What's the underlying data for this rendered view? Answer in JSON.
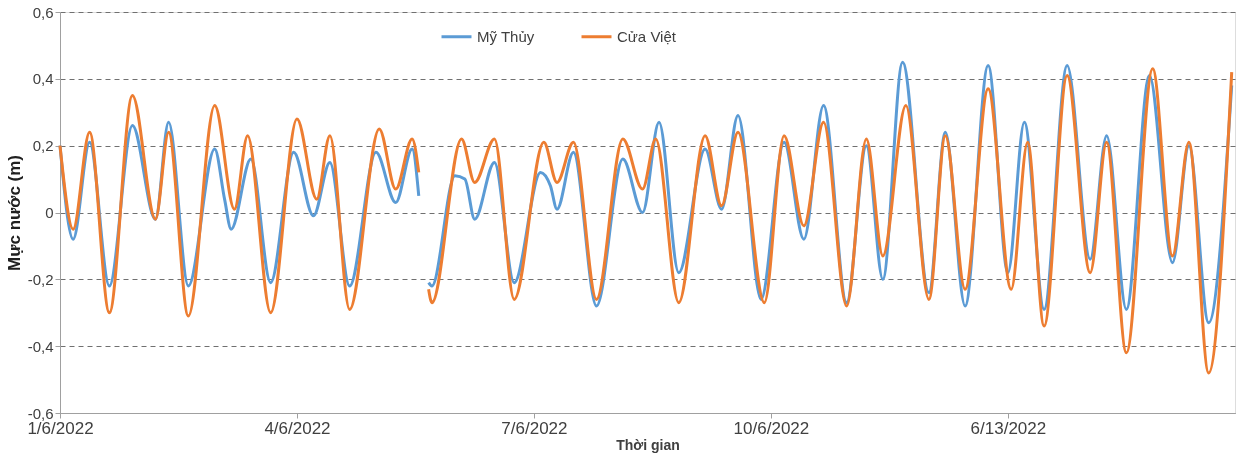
{
  "chart_data": {
    "type": "line",
    "xlabel": "Thời gian",
    "ylabel": "Mực nước (m)",
    "xlim": [
      "2022-06-01T00:00",
      "2022-06-15T21:00"
    ],
    "xticks": [
      {
        "value": "2022-06-01",
        "label": "1/6/2022"
      },
      {
        "value": "2022-06-04",
        "label": "4/6/2022"
      },
      {
        "value": "2022-06-07",
        "label": "7/6/2022"
      },
      {
        "value": "2022-06-10",
        "label": "10/6/2022"
      },
      {
        "value": "2022-06-13",
        "label": "6/13/2022"
      }
    ],
    "ylim": [
      -0.6,
      0.6
    ],
    "yticks": [
      {
        "value": -0.6,
        "label": "-0,6"
      },
      {
        "value": -0.4,
        "label": "-0,4"
      },
      {
        "value": -0.2,
        "label": "-0,2"
      },
      0,
      {
        "value": 0.2,
        "label": "0,2"
      },
      {
        "value": 0.4,
        "label": "0,4"
      },
      {
        "value": 0.6,
        "label": "0,6"
      }
    ],
    "grid": "y",
    "legend": "top",
    "line_style": "solid",
    "marker": "none",
    "series": [
      {
        "name": "Mỹ Thủy",
        "color": "#5b9bd5",
        "x": [
          "2022-06-01T00:00",
          "2022-06-01T04:00",
          "2022-06-01T09:00",
          "2022-06-01T15:00",
          "2022-06-01T22:00",
          "2022-06-02T05:00",
          "2022-06-02T09:00",
          "2022-06-02T15:00",
          "2022-06-02T23:00",
          "2022-06-03T02:00",
          "2022-06-03T04:00",
          "2022-06-03T10:00",
          "2022-06-03T16:00",
          "2022-06-03T23:00",
          "2022-06-04T05:00",
          "2022-06-04T10:00",
          "2022-06-04T16:00",
          "2022-06-05T00:00",
          "2022-06-05T06:00",
          "2022-06-05T11:00",
          "2022-06-05T13:00",
          "2022-06-05T15:00",
          "2022-06-05T16:00",
          "2022-06-05T17:00",
          "2022-06-06T00:00",
          "2022-06-06T03:00",
          "2022-06-06T06:00",
          "2022-06-06T12:00",
          "2022-06-06T18:00",
          "2022-06-07T02:00",
          "2022-06-07T05:00",
          "2022-06-07T07:00",
          "2022-06-07T12:00",
          "2022-06-07T19:00",
          "2022-06-08T03:00",
          "2022-06-08T09:00",
          "2022-06-08T14:00",
          "2022-06-08T20:00",
          "2022-06-09T04:00",
          "2022-06-09T09:00",
          "2022-06-09T14:00",
          "2022-06-09T21:00",
          "2022-06-10T04:00",
          "2022-06-10T10:00",
          "2022-06-10T16:00",
          "2022-06-10T23:00",
          "2022-06-11T05:00",
          "2022-06-11T10:00",
          "2022-06-11T16:00",
          "2022-06-12T00:00",
          "2022-06-12T05:00",
          "2022-06-12T11:00",
          "2022-06-12T18:00",
          "2022-06-13T00:00",
          "2022-06-13T05:00",
          "2022-06-13T11:00",
          "2022-06-13T18:00",
          "2022-06-14T01:00",
          "2022-06-14T06:00",
          "2022-06-14T12:00",
          "2022-06-14T19:00",
          "2022-06-15T02:00",
          "2022-06-15T07:00",
          "2022-06-15T13:00",
          "2022-06-15T20:00"
        ],
        "values": [
          0.2,
          -0.08,
          0.21,
          -0.22,
          0.26,
          -0.02,
          0.27,
          -0.22,
          0.19,
          0.04,
          -0.05,
          0.16,
          -0.21,
          0.18,
          -0.01,
          0.15,
          -0.22,
          0.18,
          0.03,
          0.19,
          0.05,
          null,
          -0.21,
          -0.22,
          0.11,
          0.1,
          -0.02,
          0.15,
          -0.21,
          0.12,
          0.08,
          0.01,
          0.18,
          -0.28,
          0.16,
          0.0,
          0.27,
          -0.18,
          0.19,
          0.01,
          0.29,
          -0.26,
          0.21,
          -0.08,
          0.32,
          -0.27,
          0.2,
          -0.2,
          0.45,
          -0.24,
          0.24,
          -0.28,
          0.44,
          -0.18,
          0.27,
          -0.29,
          0.44,
          -0.14,
          0.23,
          -0.29,
          0.41,
          -0.15,
          0.2,
          -0.33,
          0.38
        ]
      },
      {
        "name": "Cửa Việt",
        "color": "#ed7d31",
        "x": [
          "2022-06-01T00:00",
          "2022-06-01T04:00",
          "2022-06-01T09:00",
          "2022-06-01T15:00",
          "2022-06-01T22:00",
          "2022-06-02T05:00",
          "2022-06-02T09:00",
          "2022-06-02T15:00",
          "2022-06-02T23:00",
          "2022-06-03T05:00",
          "2022-06-03T09:00",
          "2022-06-03T16:00",
          "2022-06-04T00:00",
          "2022-06-04T06:00",
          "2022-06-04T10:00",
          "2022-06-04T16:00",
          "2022-06-05T01:00",
          "2022-06-05T06:00",
          "2022-06-05T11:00",
          "2022-06-05T13:00",
          "2022-06-05T15:00",
          "2022-06-05T16:00",
          "2022-06-05T17:00",
          "2022-06-06T02:00",
          "2022-06-06T06:00",
          "2022-06-06T12:00",
          "2022-06-06T18:00",
          "2022-06-07T03:00",
          "2022-06-07T07:00",
          "2022-06-07T12:00",
          "2022-06-07T19:00",
          "2022-06-08T03:00",
          "2022-06-08T09:00",
          "2022-06-08T13:00",
          "2022-06-08T20:00",
          "2022-06-09T04:00",
          "2022-06-09T09:00",
          "2022-06-09T14:00",
          "2022-06-09T22:00",
          "2022-06-10T04:00",
          "2022-06-10T10:00",
          "2022-06-10T16:00",
          "2022-06-10T23:00",
          "2022-06-11T05:00",
          "2022-06-11T10:00",
          "2022-06-11T17:00",
          "2022-06-12T00:00",
          "2022-06-12T05:00",
          "2022-06-12T11:00",
          "2022-06-12T18:00",
          "2022-06-13T01:00",
          "2022-06-13T06:00",
          "2022-06-13T11:00",
          "2022-06-13T18:00",
          "2022-06-14T01:00",
          "2022-06-14T06:00",
          "2022-06-14T12:00",
          "2022-06-14T20:00",
          "2022-06-15T02:00",
          "2022-06-15T07:00",
          "2022-06-15T13:00",
          "2022-06-15T20:00"
        ],
        "values": [
          0.2,
          -0.05,
          0.24,
          -0.3,
          0.35,
          -0.02,
          0.24,
          -0.31,
          0.32,
          0.01,
          0.23,
          -0.3,
          0.28,
          0.04,
          0.23,
          -0.29,
          0.25,
          0.07,
          0.22,
          0.12,
          null,
          -0.23,
          -0.27,
          0.22,
          0.09,
          0.22,
          -0.26,
          0.21,
          0.09,
          0.21,
          -0.26,
          0.22,
          0.07,
          0.22,
          -0.27,
          0.23,
          0.02,
          0.24,
          -0.27,
          0.23,
          -0.04,
          0.27,
          -0.28,
          0.22,
          -0.13,
          0.32,
          -0.26,
          0.23,
          -0.23,
          0.37,
          -0.23,
          0.21,
          -0.34,
          0.41,
          -0.18,
          0.21,
          -0.42,
          0.43,
          -0.13,
          0.21,
          -0.48,
          0.42
        ]
      }
    ]
  }
}
